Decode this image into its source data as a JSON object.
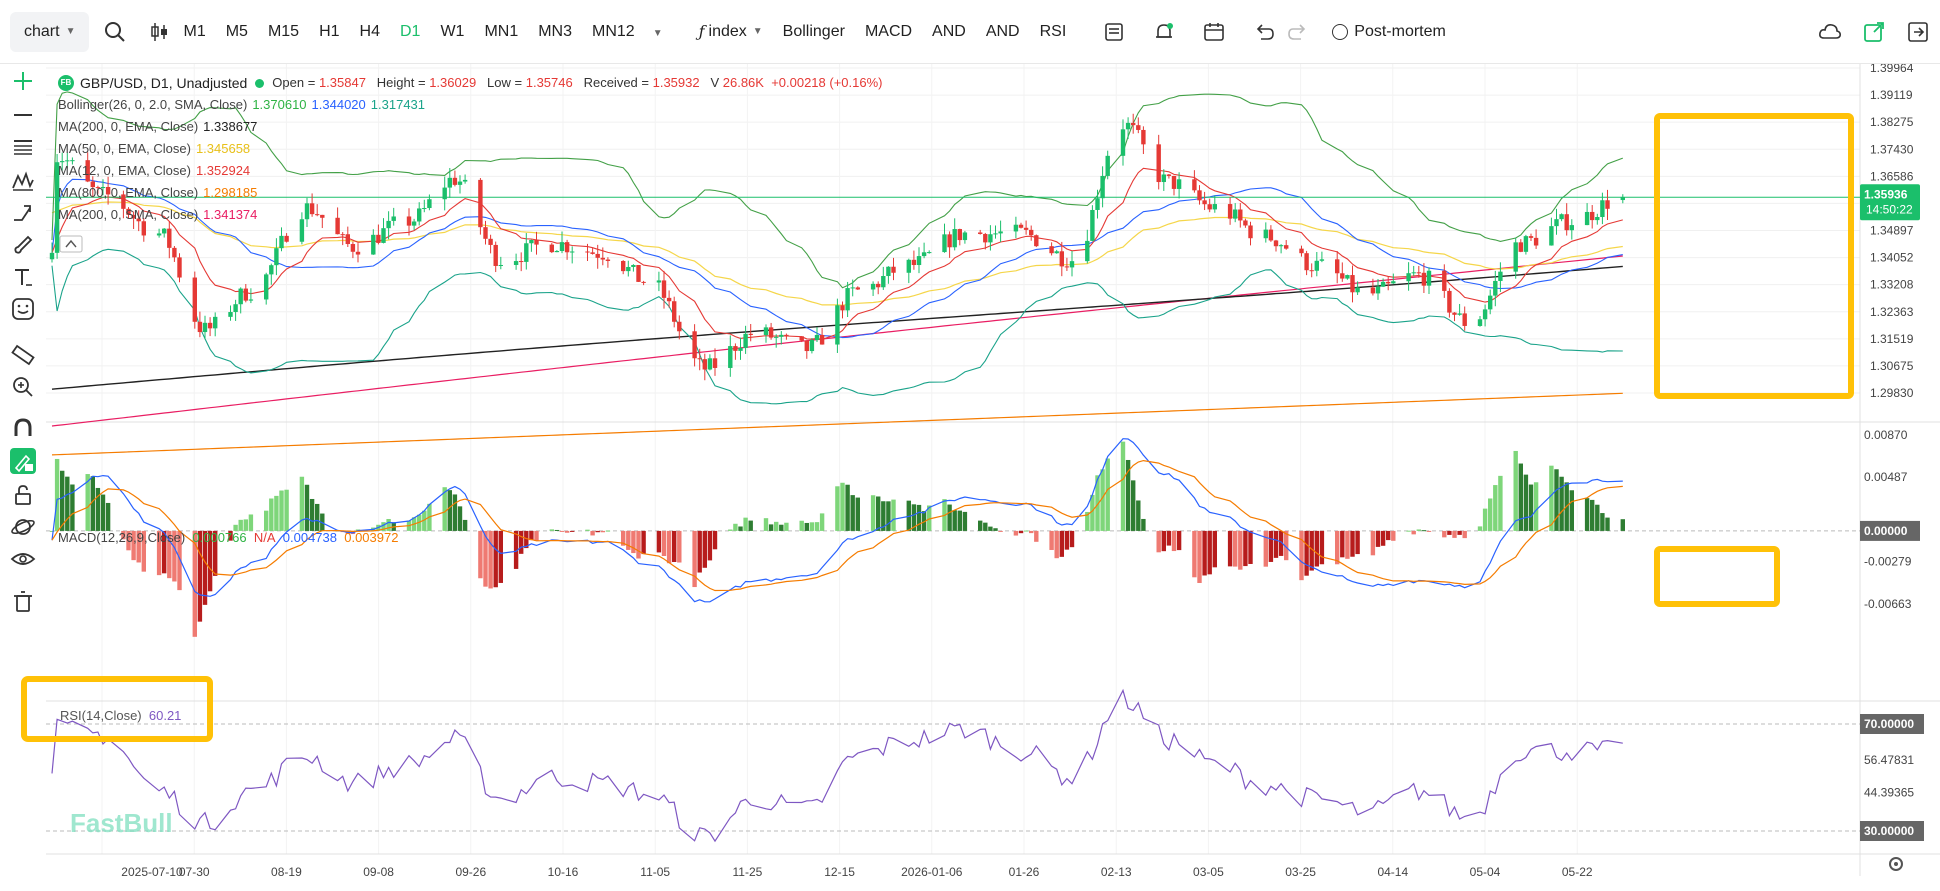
{
  "toolbar": {
    "chart_label": "chart",
    "timeframes": [
      "M1",
      "M5",
      "M15",
      "H1",
      "H4",
      "D1",
      "W1",
      "MN1",
      "MN3",
      "MN12"
    ],
    "active_timeframe": "D1",
    "index_label": "index",
    "indicators": [
      "Bollinger",
      "MACD",
      "AND",
      "AND",
      "RSI"
    ],
    "postmortem_label": "Post-mortem"
  },
  "info": {
    "symbol": "GBP/USD, D1, Unadjusted",
    "logo": "FB",
    "open_label": "Open =",
    "open": "1.35847",
    "height_label": "Height =",
    "height": "1.36029",
    "low_label": "Low =",
    "low": "1.35746",
    "received_label": "Received =",
    "received": "1.35932",
    "v_label": "V",
    "volume": "26.86K",
    "change": "+0.00218 (+0.16%)",
    "lines": [
      {
        "label": "Bollinger(26, 0, 2.0, SMA, Close)",
        "vals": [
          {
            "v": "1.370610",
            "c": "#2fb344"
          },
          {
            "v": "1.344020",
            "c": "#2962ff"
          },
          {
            "v": "1.317431",
            "c": "#1aa38a"
          }
        ]
      },
      {
        "label": "MA(200, 0, EMA, Close)",
        "vals": [
          {
            "v": "1.338677",
            "c": "#222222"
          }
        ]
      },
      {
        "label": "MA(50, 0, EMA, Close)",
        "vals": [
          {
            "v": "1.345658",
            "c": "#e8c01a"
          }
        ]
      },
      {
        "label": "MA(12, 0, EMA, Close)",
        "vals": [
          {
            "v": "1.352924",
            "c": "#e53935"
          }
        ]
      },
      {
        "label": "MA(800, 0, EMA, Close)",
        "vals": [
          {
            "v": "1.298185",
            "c": "#f57c00"
          }
        ]
      },
      {
        "label": "MA(200, 0, SMA, Close)",
        "vals": [
          {
            "v": "1.341374",
            "c": "#e91e63"
          }
        ]
      }
    ]
  },
  "price_axis": {
    "ticks": [
      "1.39964",
      "1.39119",
      "1.38275",
      "1.37430",
      "1.36586",
      "1.35741",
      "1.34897",
      "1.34052",
      "1.33208",
      "1.32363",
      "1.31519",
      "1.30675",
      "1.29830"
    ],
    "current": "1.35936",
    "countdown": "14:50:22"
  },
  "macd": {
    "label": "MACD(12,26,9,Close)",
    "v1": "0.000766",
    "v2": "N/A",
    "v3": "0.004738",
    "v4": "0.003972",
    "ticks": [
      "0.00870",
      "0.00487",
      "0.00000",
      "-0.00279",
      "-0.00663"
    ],
    "zero_tag": "0.00000"
  },
  "rsi": {
    "label": "RSI(14,Close)",
    "value": "60.21",
    "ticks": [
      "70.00000",
      "56.47831",
      "44.39365",
      "30.00000"
    ]
  },
  "date_axis": [
    "2025-07-10",
    "07-30",
    "08-19",
    "09-08",
    "09-26",
    "10-16",
    "11-05",
    "11-25",
    "12-15",
    "2026-01-06",
    "01-26",
    "02-13",
    "03-05",
    "03-25",
    "04-14",
    "05-04",
    "05-22"
  ],
  "watermark": "FastBull",
  "colors": {
    "up": "#1bbf6b",
    "down": "#e53935",
    "accent": "#1bbf6b",
    "highlight": "#ffc107"
  },
  "icons": [
    "plus-icon",
    "hline-icon",
    "hlines-icon",
    "wave-icon",
    "trend-icon",
    "brush-icon",
    "text-icon",
    "emoji-icon",
    "ruler-icon",
    "zoom-icon",
    "magnet-icon",
    "lock-draw-icon",
    "lock-icon",
    "planet-icon",
    "eye-icon",
    "trash-icon"
  ],
  "chart_data": {
    "type": "candlestick",
    "anchors": [
      {
        "date": "2025-06-30",
        "price": 1.345,
        "macd": -0.001,
        "rsi": 50
      },
      {
        "date": "2025-07-01",
        "price": 1.372,
        "macd": 0.003,
        "rsi": 68
      },
      {
        "date": "2025-07-10",
        "price": 1.36,
        "macd": 0.005,
        "rsi": 66
      },
      {
        "date": "2025-07-21",
        "price": 1.348,
        "macd": 0.0,
        "rsi": 45
      },
      {
        "date": "2025-07-30",
        "price": 1.318,
        "macd": -0.006,
        "rsi": 33
      },
      {
        "date": "2025-08-08",
        "price": 1.33,
        "macd": -0.003,
        "rsi": 45
      },
      {
        "date": "2025-08-19",
        "price": 1.356,
        "macd": 0.001,
        "rsi": 58
      },
      {
        "date": "2025-08-28",
        "price": 1.344,
        "macd": 0.0,
        "rsi": 48
      },
      {
        "date": "2025-09-08",
        "price": 1.352,
        "macd": 0.001,
        "rsi": 55
      },
      {
        "date": "2025-09-17",
        "price": 1.365,
        "macd": 0.004,
        "rsi": 64
      },
      {
        "date": "2025-09-26",
        "price": 1.34,
        "macd": -0.002,
        "rsi": 42
      },
      {
        "date": "2025-10-06",
        "price": 1.345,
        "macd": -0.001,
        "rsi": 50
      },
      {
        "date": "2025-10-16",
        "price": 1.342,
        "macd": -0.001,
        "rsi": 48
      },
      {
        "date": "2025-10-25",
        "price": 1.333,
        "macd": -0.003,
        "rsi": 44
      },
      {
        "date": "2025-11-05",
        "price": 1.306,
        "macd": -0.0065,
        "rsi": 28
      },
      {
        "date": "2025-11-15",
        "price": 1.317,
        "macd": -0.0045,
        "rsi": 42
      },
      {
        "date": "2025-11-25",
        "price": 1.312,
        "macd": -0.004,
        "rsi": 38
      },
      {
        "date": "2025-12-05",
        "price": 1.33,
        "macd": -0.0005,
        "rsi": 58
      },
      {
        "date": "2025-12-15",
        "price": 1.338,
        "macd": 0.0015,
        "rsi": 64
      },
      {
        "date": "2025-12-26",
        "price": 1.348,
        "macd": 0.003,
        "rsi": 68
      },
      {
        "date": "2026-01-06",
        "price": 1.348,
        "macd": 0.0025,
        "rsi": 60
      },
      {
        "date": "2026-01-16",
        "price": 1.34,
        "macd": 0.0005,
        "rsi": 50
      },
      {
        "date": "2026-01-26",
        "price": 1.382,
        "macd": 0.0085,
        "rsi": 79
      },
      {
        "date": "2026-02-04",
        "price": 1.364,
        "macd": 0.005,
        "rsi": 64
      },
      {
        "date": "2026-02-13",
        "price": 1.356,
        "macd": 0.0015,
        "rsi": 55
      },
      {
        "date": "2026-02-23",
        "price": 1.347,
        "macd": -0.0005,
        "rsi": 47
      },
      {
        "date": "2026-03-05",
        "price": 1.338,
        "macd": -0.0035,
        "rsi": 42
      },
      {
        "date": "2026-03-15",
        "price": 1.329,
        "macd": -0.005,
        "rsi": 37
      },
      {
        "date": "2026-03-25",
        "price": 1.335,
        "macd": -0.0045,
        "rsi": 45
      },
      {
        "date": "2026-04-04",
        "price": 1.32,
        "macd": -0.005,
        "rsi": 35
      },
      {
        "date": "2026-04-14",
        "price": 1.345,
        "macd": 0.001,
        "rsi": 60
      },
      {
        "date": "2026-04-24",
        "price": 1.352,
        "macd": 0.0045,
        "rsi": 60
      },
      {
        "date": "2026-05-04",
        "price": 1.3593,
        "macd": 0.0047,
        "rsi": 60
      }
    ],
    "last": {
      "open": 1.35847,
      "high": 1.36029,
      "low": 1.35746,
      "close": 1.35932
    }
  }
}
